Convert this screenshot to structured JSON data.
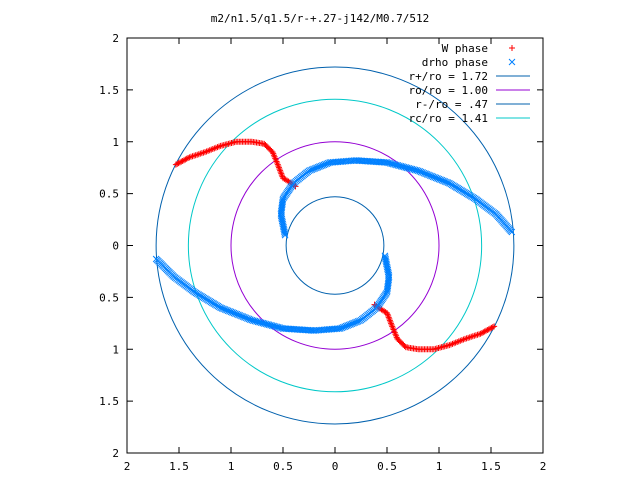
{
  "chart_data": {
    "type": "scatter",
    "title": "m2/n1.5/q1.5/r-+.27-j142/M0.7/512",
    "xlabel": "",
    "ylabel": "",
    "xlim": [
      -2,
      2
    ],
    "ylim": [
      -2,
      2
    ],
    "x_ticks": [
      -2,
      -1.5,
      -1,
      -0.5,
      0,
      0.5,
      1,
      1.5,
      2
    ],
    "y_ticks": [
      -2,
      -1.5,
      -1,
      -0.5,
      0,
      0.5,
      1,
      1.5,
      2
    ],
    "x_tick_labels": [
      "2",
      "1.5",
      "1",
      "0.5",
      "0",
      "0.5",
      "1",
      "1.5",
      "2"
    ],
    "y_tick_labels": [
      "2",
      "1.5",
      "1",
      "0.5",
      "0",
      "0.5",
      "1",
      "1.5",
      "2"
    ],
    "grid": false,
    "legend_position": "top-right",
    "series": [
      {
        "name": "W phase",
        "kind": "points",
        "marker": "plus",
        "color": "#ff0000",
        "x": [
          -1.53,
          -1.4,
          -1.25,
          -1.1,
          -0.95,
          -0.8,
          -0.68,
          -0.6,
          -0.55,
          -0.5,
          -0.42,
          -0.38,
          1.53,
          1.4,
          1.25,
          1.1,
          0.95,
          0.8,
          0.68,
          0.6,
          0.55,
          0.5,
          0.42,
          0.38
        ],
        "y": [
          0.78,
          0.85,
          0.9,
          0.96,
          1.0,
          1.0,
          0.98,
          0.9,
          0.78,
          0.65,
          0.6,
          0.57,
          -0.78,
          -0.85,
          -0.9,
          -0.96,
          -1.0,
          -1.0,
          -0.98,
          -0.9,
          -0.78,
          -0.65,
          -0.6,
          -0.57
        ]
      },
      {
        "name": "drho phase",
        "kind": "points",
        "marker": "cross",
        "color": "#0080ff",
        "x": [
          -0.48,
          -0.52,
          -0.5,
          -0.4,
          -0.25,
          -0.05,
          0.2,
          0.5,
          0.8,
          1.1,
          1.35,
          1.55,
          1.7,
          0.48,
          0.52,
          0.5,
          0.4,
          0.25,
          0.05,
          -0.2,
          -0.5,
          -0.8,
          -1.1,
          -1.35,
          -1.55,
          -1.72
        ],
        "y": [
          0.1,
          0.3,
          0.45,
          0.6,
          0.72,
          0.8,
          0.82,
          0.8,
          0.72,
          0.6,
          0.45,
          0.3,
          0.13,
          -0.1,
          -0.3,
          -0.45,
          -0.6,
          -0.72,
          -0.8,
          -0.82,
          -0.8,
          -0.72,
          -0.6,
          -0.45,
          -0.3,
          -0.13
        ]
      },
      {
        "name": "r+/ro = 1.72",
        "kind": "circle",
        "radius": 1.72,
        "color": "#0060ad"
      },
      {
        "name": "ro/ro = 1.00",
        "kind": "circle",
        "radius": 1.0,
        "color": "#9400d3"
      },
      {
        "name": "r-/ro = .47",
        "kind": "circle",
        "radius": 0.47,
        "color": "#0060ad"
      },
      {
        "name": "rc/ro = 1.41",
        "kind": "circle",
        "radius": 1.41,
        "color": "#00c8c8"
      }
    ]
  }
}
